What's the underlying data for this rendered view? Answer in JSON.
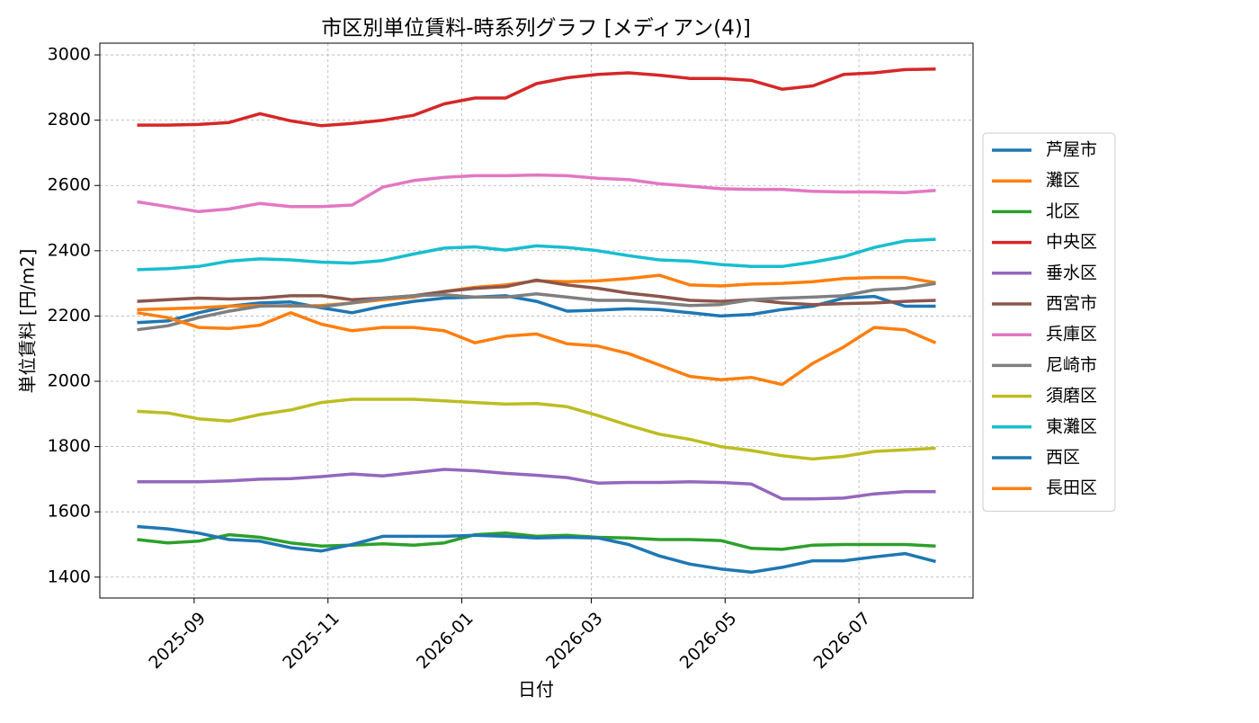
{
  "chart_data": {
    "type": "line",
    "title": "市区別単位賃料-時系列グラフ [メディアン(4)]",
    "xlabel": "日付",
    "ylabel": "単位賃料 [円/m2]",
    "x": [
      "2025-08-06",
      "2025-08-20",
      "2025-09-03",
      "2025-09-17",
      "2025-10-01",
      "2025-10-15",
      "2025-10-29",
      "2025-11-12",
      "2025-11-26",
      "2025-12-10",
      "2025-12-24",
      "2026-01-07",
      "2026-01-21",
      "2026-02-04",
      "2026-02-18",
      "2026-03-04",
      "2026-03-18",
      "2026-04-01",
      "2026-04-15",
      "2026-04-29",
      "2026-05-13",
      "2026-05-27",
      "2026-06-10",
      "2026-06-24",
      "2026-07-08",
      "2026-07-22",
      "2026-08-05"
    ],
    "xlim": [
      "2025-07-20",
      "2026-08-22"
    ],
    "xticks": [
      {
        "value": "2025-09-01",
        "label": "2025-09"
      },
      {
        "value": "2025-11-01",
        "label": "2025-11"
      },
      {
        "value": "2026-01-01",
        "label": "2026-01"
      },
      {
        "value": "2026-03-01",
        "label": "2026-03"
      },
      {
        "value": "2026-05-01",
        "label": "2026-05"
      },
      {
        "value": "2026-07-01",
        "label": "2026-07"
      }
    ],
    "ylim": [
      1336,
      3036
    ],
    "yticks": [
      1400,
      1600,
      1800,
      2000,
      2200,
      2400,
      2600,
      2800,
      3000
    ],
    "grid": true,
    "legend": "right",
    "series": [
      {
        "name": "芦屋市",
        "color": "#1f77b4",
        "values": [
          2180,
          2185,
          2210,
          2230,
          2240,
          2243,
          2225,
          2210,
          2230,
          2245,
          2255,
          2258,
          2262,
          2245,
          2215,
          2218,
          2222,
          2220,
          2210,
          2200,
          2205,
          2220,
          2230,
          2255,
          2260,
          2230,
          2230
        ]
      },
      {
        "name": "灘区",
        "color": "#ff7f0e",
        "values": [
          2220,
          2222,
          2225,
          2230,
          2232,
          2230,
          2232,
          2240,
          2250,
          2258,
          2275,
          2288,
          2295,
          2308,
          2305,
          2308,
          2315,
          2325,
          2295,
          2292,
          2298,
          2300,
          2305,
          2315,
          2318,
          2318,
          2302
        ]
      },
      {
        "name": "北区",
        "color": "#2ca02c",
        "values": [
          1515,
          1505,
          1510,
          1530,
          1522,
          1505,
          1495,
          1498,
          1502,
          1498,
          1505,
          1530,
          1535,
          1525,
          1528,
          1522,
          1520,
          1515,
          1515,
          1512,
          1488,
          1485,
          1498,
          1500,
          1500,
          1500,
          1495
        ]
      },
      {
        "name": "中央区",
        "color": "#d62728",
        "values": [
          2785,
          2785,
          2787,
          2793,
          2820,
          2798,
          2783,
          2790,
          2800,
          2815,
          2850,
          2868,
          2868,
          2912,
          2930,
          2940,
          2945,
          2938,
          2928,
          2928,
          2922,
          2895,
          2905,
          2940,
          2945,
          2955,
          2957
        ]
      },
      {
        "name": "垂水区",
        "color": "#9467bd",
        "values": [
          1692,
          1692,
          1692,
          1695,
          1700,
          1702,
          1708,
          1716,
          1710,
          1720,
          1730,
          1726,
          1718,
          1712,
          1705,
          1688,
          1690,
          1690,
          1692,
          1690,
          1685,
          1640,
          1640,
          1642,
          1655,
          1662,
          1662
        ]
      },
      {
        "name": "西宮市",
        "color": "#8c564b",
        "values": [
          2245,
          2250,
          2255,
          2252,
          2255,
          2262,
          2262,
          2250,
          2255,
          2262,
          2275,
          2285,
          2290,
          2310,
          2295,
          2285,
          2270,
          2260,
          2248,
          2245,
          2250,
          2240,
          2235,
          2238,
          2240,
          2245,
          2248
        ]
      },
      {
        "name": "兵庫区",
        "color": "#e377c2",
        "values": [
          2550,
          2535,
          2520,
          2528,
          2545,
          2535,
          2535,
          2540,
          2595,
          2615,
          2625,
          2630,
          2630,
          2632,
          2630,
          2622,
          2618,
          2605,
          2598,
          2590,
          2588,
          2588,
          2582,
          2580,
          2580,
          2578,
          2585
        ]
      },
      {
        "name": "尼崎市",
        "color": "#7f7f7f",
        "values": [
          2158,
          2170,
          2195,
          2215,
          2230,
          2232,
          2228,
          2240,
          2255,
          2262,
          2265,
          2258,
          2258,
          2268,
          2258,
          2248,
          2248,
          2240,
          2232,
          2235,
          2250,
          2255,
          2258,
          2262,
          2280,
          2285,
          2300
        ]
      },
      {
        "name": "須磨区",
        "color": "#bcbd22",
        "values": [
          1908,
          1903,
          1885,
          1878,
          1898,
          1912,
          1935,
          1945,
          1945,
          1945,
          1940,
          1935,
          1930,
          1932,
          1922,
          1895,
          1865,
          1838,
          1822,
          1800,
          1788,
          1772,
          1762,
          1770,
          1785,
          1790,
          1795
        ]
      },
      {
        "name": "東灘区",
        "color": "#17becf",
        "values": [
          2342,
          2345,
          2352,
          2368,
          2375,
          2372,
          2365,
          2362,
          2370,
          2390,
          2408,
          2412,
          2402,
          2415,
          2410,
          2400,
          2385,
          2372,
          2368,
          2358,
          2352,
          2352,
          2365,
          2382,
          2410,
          2430,
          2435
        ]
      },
      {
        "name": "西区",
        "color": "#1f77b4",
        "values": [
          1555,
          1548,
          1535,
          1515,
          1510,
          1490,
          1480,
          1500,
          1525,
          1525,
          1525,
          1528,
          1525,
          1520,
          1522,
          1520,
          1500,
          1465,
          1440,
          1425,
          1415,
          1430,
          1450,
          1450,
          1462,
          1472,
          1448
        ]
      },
      {
        "name": "長田区",
        "color": "#ff7f0e",
        "values": [
          2210,
          2195,
          2165,
          2162,
          2172,
          2210,
          2175,
          2155,
          2165,
          2165,
          2155,
          2118,
          2138,
          2145,
          2115,
          2108,
          2085,
          2050,
          2015,
          2005,
          2012,
          1990,
          2055,
          2105,
          2165,
          2158,
          2118
        ]
      }
    ]
  }
}
